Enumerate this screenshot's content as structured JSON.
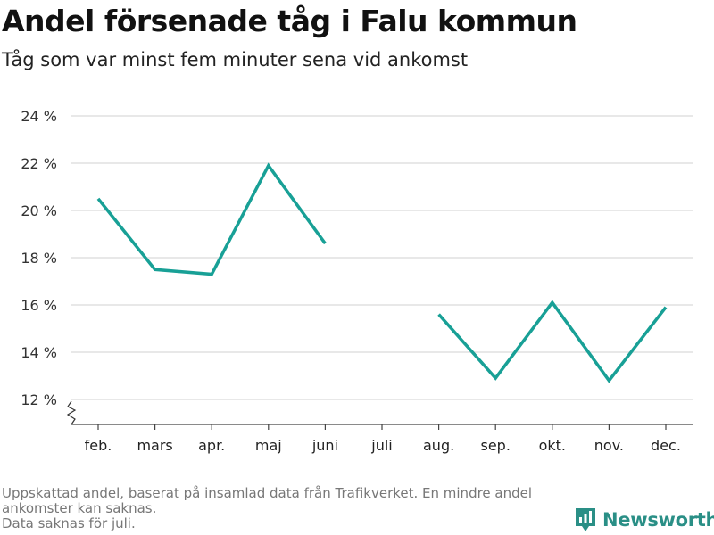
{
  "header": {
    "title": "Andel försenade tåg i Falu kommun",
    "subtitle": "Tåg som var minst fem minuter sena vid ankomst"
  },
  "chart_data": {
    "type": "line",
    "categories": [
      "feb.",
      "mars",
      "apr.",
      "maj",
      "juni",
      "juli",
      "aug.",
      "sep.",
      "okt.",
      "nov.",
      "dec."
    ],
    "series": [
      {
        "values": [
          20.5,
          17.5,
          17.3,
          21.9,
          18.6,
          null,
          15.6,
          12.9,
          16.1,
          12.8,
          15.9
        ]
      }
    ],
    "yticks": [
      12,
      14,
      16,
      18,
      20,
      22,
      24
    ],
    "ytick_suffix": " %",
    "ylim": [
      11,
      24
    ],
    "axis_break": true,
    "grid": true,
    "line_color": "#18a096"
  },
  "footnote": {
    "line1": "Uppskattad andel, baserat på insamlad data från Trafikverket. En mindre andel",
    "line2": "ankomster kan saknas.",
    "line3": "Data saknas för juli."
  },
  "brand": {
    "name": "Newsworthy",
    "icon": "bar-chart-logo-icon",
    "color": "#2a8f86"
  }
}
